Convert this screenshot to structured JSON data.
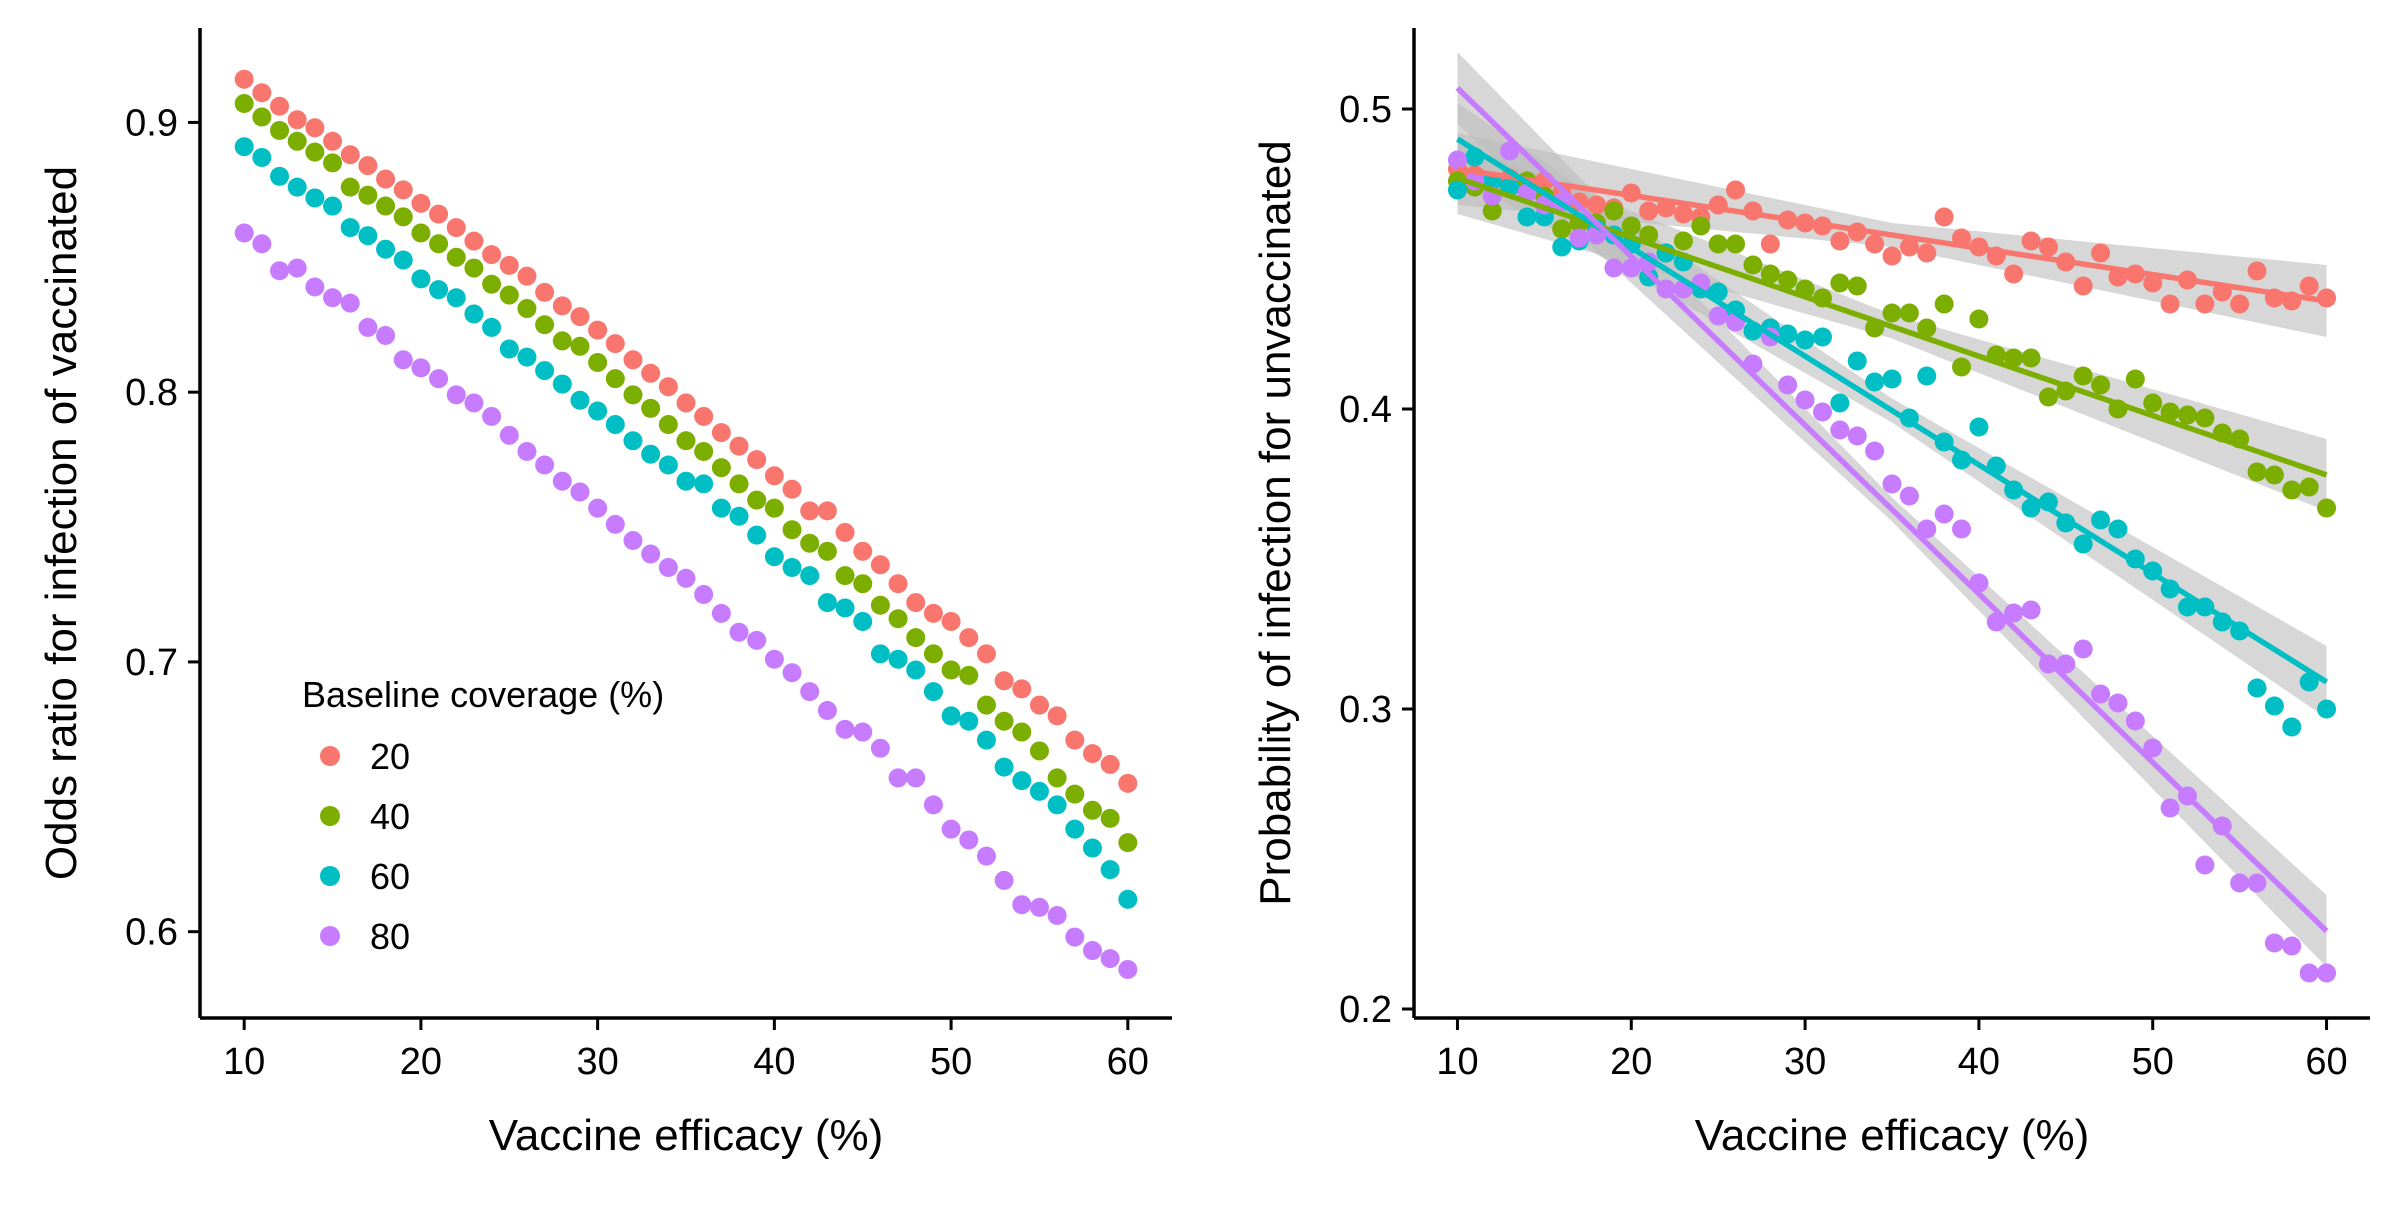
{
  "legend": {
    "title": "Baseline coverage (%)",
    "items": [
      {
        "label": "20",
        "color": "#F8766D"
      },
      {
        "label": "40",
        "color": "#7CAE00"
      },
      {
        "label": "60",
        "color": "#00BFC4"
      },
      {
        "label": "80",
        "color": "#C77CFF"
      }
    ],
    "placement": "inside left panel, bottom-left"
  },
  "chart_data": [
    {
      "type": "scatter",
      "xlabel": "Vaccine efficacy (%)",
      "ylabel": "Odds ratio for infection of vaccinated",
      "xlim": [
        7.5,
        62.5
      ],
      "ylim": [
        0.568,
        0.935
      ],
      "xticks": [
        10,
        20,
        30,
        40,
        50,
        60
      ],
      "yticks": [
        0.6,
        0.7,
        0.8,
        0.9
      ],
      "xtick_labels": [
        "10",
        "20",
        "30",
        "40",
        "50",
        "60"
      ],
      "ytick_labels": [
        "0.6",
        "0.7",
        "0.8",
        "0.9"
      ],
      "grid": false,
      "x": [
        10,
        11,
        12,
        13,
        14,
        15,
        16,
        17,
        18,
        19,
        20,
        21,
        22,
        23,
        24,
        25,
        26,
        27,
        28,
        29,
        30,
        31,
        32,
        33,
        34,
        35,
        36,
        37,
        38,
        39,
        40,
        41,
        42,
        43,
        44,
        45,
        46,
        47,
        48,
        49,
        50,
        51,
        52,
        53,
        54,
        55,
        56,
        57,
        58,
        59,
        60
      ],
      "series": [
        {
          "name": "20",
          "color": "#F8766D",
          "values": [
            0.916,
            0.911,
            0.906,
            0.901,
            0.898,
            0.893,
            0.888,
            0.884,
            0.879,
            0.875,
            0.87,
            0.866,
            0.861,
            0.856,
            0.851,
            0.847,
            0.843,
            0.837,
            0.832,
            0.828,
            0.823,
            0.818,
            0.812,
            0.807,
            0.802,
            0.796,
            0.791,
            0.785,
            0.78,
            0.775,
            0.769,
            0.764,
            0.756,
            0.756,
            0.748,
            0.741,
            0.736,
            0.729,
            0.722,
            0.718,
            0.715,
            0.709,
            0.703,
            0.693,
            0.69,
            0.684,
            0.68,
            0.671,
            0.666,
            0.662,
            0.655
          ]
        },
        {
          "name": "40",
          "color": "#7CAE00",
          "values": [
            0.907,
            0.902,
            0.897,
            0.893,
            0.889,
            0.885,
            0.876,
            0.873,
            0.869,
            0.865,
            0.859,
            0.855,
            0.85,
            0.846,
            0.84,
            0.836,
            0.831,
            0.825,
            0.819,
            0.817,
            0.811,
            0.805,
            0.799,
            0.794,
            0.788,
            0.782,
            0.778,
            0.772,
            0.766,
            0.76,
            0.757,
            0.749,
            0.744,
            0.741,
            0.732,
            0.729,
            0.721,
            0.716,
            0.709,
            0.703,
            0.697,
            0.695,
            0.684,
            0.678,
            0.674,
            0.667,
            0.657,
            0.651,
            0.645,
            0.642,
            0.633
          ]
        },
        {
          "name": "60",
          "color": "#00BFC4",
          "values": [
            0.891,
            0.887,
            0.88,
            0.876,
            0.872,
            0.869,
            0.861,
            0.858,
            0.853,
            0.849,
            0.842,
            0.838,
            0.835,
            0.829,
            0.824,
            0.816,
            0.813,
            0.808,
            0.803,
            0.797,
            0.793,
            0.788,
            0.782,
            0.777,
            0.773,
            0.767,
            0.766,
            0.757,
            0.754,
            0.747,
            0.739,
            0.735,
            0.732,
            0.722,
            0.72,
            0.715,
            0.703,
            0.701,
            0.697,
            0.689,
            0.68,
            0.678,
            0.671,
            0.661,
            0.656,
            0.652,
            0.647,
            0.638,
            0.631,
            0.623,
            0.612
          ]
        },
        {
          "name": "80",
          "color": "#C77CFF",
          "values": [
            0.859,
            0.855,
            0.845,
            0.846,
            0.839,
            0.835,
            0.833,
            0.824,
            0.821,
            0.812,
            0.809,
            0.805,
            0.799,
            0.796,
            0.791,
            0.784,
            0.778,
            0.773,
            0.767,
            0.763,
            0.757,
            0.751,
            0.745,
            0.74,
            0.735,
            0.731,
            0.725,
            0.718,
            0.711,
            0.708,
            0.701,
            0.696,
            0.689,
            0.682,
            0.675,
            0.674,
            0.668,
            0.657,
            0.657,
            0.647,
            0.638,
            0.634,
            0.628,
            0.619,
            0.61,
            0.609,
            0.606,
            0.598,
            0.593,
            0.59,
            0.586
          ]
        }
      ]
    },
    {
      "type": "scatter",
      "xlabel": "Vaccine efficacy (%)",
      "ylabel": "Probability of infection for unvaccinated",
      "xlim": [
        7.5,
        62.5
      ],
      "ylim": [
        0.197,
        0.527
      ],
      "xticks": [
        10,
        20,
        30,
        40,
        50,
        60
      ],
      "yticks": [
        0.2,
        0.3,
        0.4,
        0.5
      ],
      "xtick_labels": [
        "10",
        "20",
        "30",
        "40",
        "50",
        "60"
      ],
      "ytick_labels": [
        "0.2",
        "0.3",
        "0.4",
        "0.5"
      ],
      "grid": false,
      "x": [
        10,
        11,
        12,
        13,
        14,
        15,
        16,
        17,
        18,
        19,
        20,
        21,
        22,
        23,
        24,
        25,
        26,
        27,
        28,
        29,
        30,
        31,
        32,
        33,
        34,
        35,
        36,
        37,
        38,
        39,
        40,
        41,
        42,
        43,
        44,
        45,
        46,
        47,
        48,
        49,
        50,
        51,
        52,
        53,
        54,
        55,
        56,
        57,
        58,
        59,
        60
      ],
      "series": [
        {
          "name": "20",
          "color": "#F8766D",
          "fit": {
            "start": 0.48,
            "end": 0.436
          },
          "values": [
            0.48,
            0.478,
            0.476,
            0.477,
            0.474,
            0.476,
            0.472,
            0.469,
            0.468,
            0.467,
            0.472,
            0.466,
            0.467,
            0.465,
            0.464,
            0.468,
            0.473,
            0.466,
            0.455,
            0.463,
            0.462,
            0.461,
            0.456,
            0.459,
            0.455,
            0.451,
            0.454,
            0.452,
            0.464,
            0.457,
            0.454,
            0.451,
            0.445,
            0.456,
            0.454,
            0.449,
            0.441,
            0.452,
            0.444,
            0.445,
            0.442,
            0.435,
            0.443,
            0.435,
            0.439,
            0.435,
            0.446,
            0.437,
            0.436,
            0.441,
            0.437
          ]
        },
        {
          "name": "40",
          "color": "#7CAE00",
          "fit": {
            "start": 0.477,
            "end": 0.378
          },
          "values": [
            0.476,
            0.474,
            0.466,
            0.474,
            0.476,
            0.471,
            0.46,
            0.462,
            0.462,
            0.466,
            0.461,
            0.458,
            0.452,
            0.456,
            0.461,
            0.455,
            0.455,
            0.448,
            0.445,
            0.443,
            0.44,
            0.437,
            0.442,
            0.441,
            0.427,
            0.432,
            0.432,
            0.427,
            0.435,
            0.414,
            0.43,
            0.418,
            0.417,
            0.417,
            0.404,
            0.406,
            0.411,
            0.408,
            0.4,
            0.41,
            0.402,
            0.399,
            0.398,
            0.397,
            0.392,
            0.39,
            0.379,
            0.378,
            0.373,
            0.374,
            0.367
          ]
        },
        {
          "name": "60",
          "color": "#00BFC4",
          "fit": {
            "start": 0.49,
            "end": 0.309
          },
          "values": [
            0.473,
            0.484,
            0.476,
            0.474,
            0.464,
            0.464,
            0.454,
            0.456,
            0.46,
            0.458,
            0.455,
            0.444,
            0.452,
            0.449,
            0.44,
            0.439,
            0.433,
            0.426,
            0.427,
            0.425,
            0.423,
            0.424,
            0.402,
            0.416,
            0.409,
            0.41,
            0.397,
            0.411,
            0.389,
            0.383,
            0.394,
            0.381,
            0.373,
            0.367,
            0.369,
            0.362,
            0.355,
            0.363,
            0.36,
            0.35,
            0.346,
            0.34,
            0.334,
            0.334,
            0.329,
            0.326,
            0.307,
            0.301,
            0.294,
            0.309,
            0.3
          ]
        },
        {
          "name": "80",
          "color": "#C77CFF",
          "fit": {
            "start": 0.507,
            "end": 0.226
          },
          "values": [
            0.483,
            0.476,
            0.471,
            0.486,
            0.472,
            0.468,
            0.469,
            0.457,
            0.458,
            0.447,
            0.447,
            0.449,
            0.44,
            0.44,
            0.442,
            0.431,
            0.429,
            0.415,
            0.424,
            0.408,
            0.403,
            0.399,
            0.393,
            0.391,
            0.386,
            0.375,
            0.371,
            0.36,
            0.365,
            0.36,
            0.342,
            0.329,
            0.332,
            0.333,
            0.315,
            0.315,
            0.32,
            0.305,
            0.302,
            0.296,
            0.287,
            0.267,
            0.271,
            0.248,
            0.261,
            0.242,
            0.242,
            0.222,
            0.221,
            0.212,
            0.212
          ]
        }
      ]
    }
  ]
}
